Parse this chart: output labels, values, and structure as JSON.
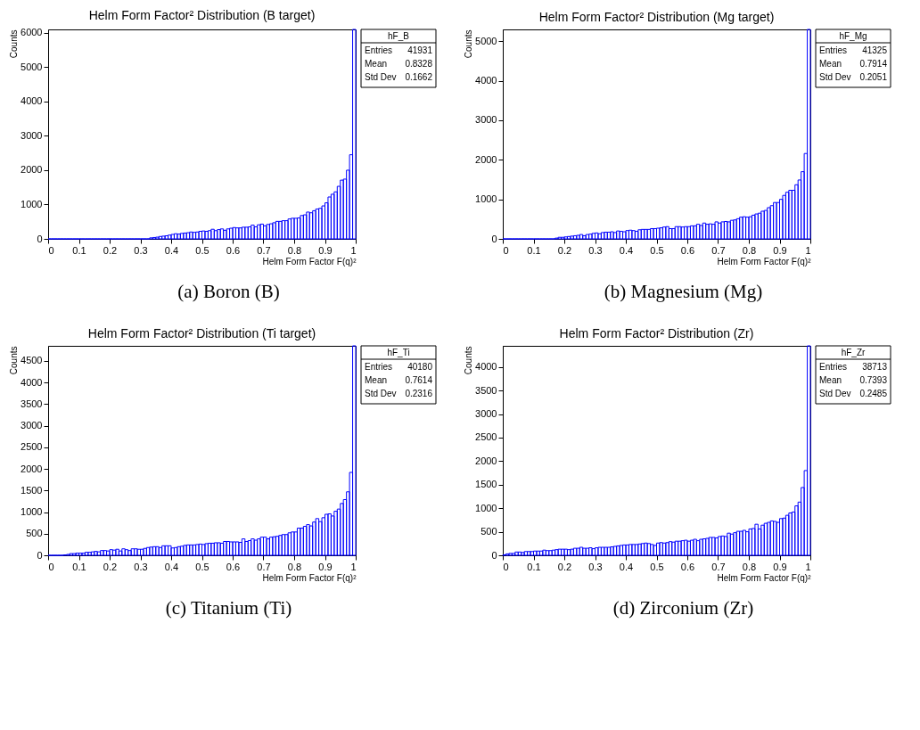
{
  "chart_data": [
    {
      "type": "histogram",
      "title": "Helm Form Factor² Distribution (B target)",
      "xlabel": "Helm Form Factor F(q)²",
      "ylabel": "Counts",
      "color": "#0000ff",
      "bins": [
        0,
        0.01,
        0.02,
        0.03,
        0.04,
        0.05,
        0.06,
        0.07,
        0.08,
        0.09,
        0.1,
        0.11,
        0.12,
        0.13,
        0.14,
        0.15,
        0.16,
        0.17,
        0.18,
        0.19,
        0.2,
        0.21,
        0.22,
        0.23,
        0.24,
        0.25,
        0.26,
        0.27,
        0.28,
        0.29,
        0.3,
        0.31,
        0.32,
        0.33,
        0.34,
        0.35,
        0.36,
        0.37,
        0.38,
        0.39,
        0.4,
        0.41,
        0.42,
        0.43,
        0.44,
        0.45,
        0.46,
        0.47,
        0.48,
        0.49,
        0.5,
        0.51,
        0.52,
        0.53,
        0.54,
        0.55,
        0.56,
        0.57,
        0.58,
        0.59,
        0.6,
        0.61,
        0.62,
        0.63,
        0.64,
        0.65,
        0.66,
        0.67,
        0.68,
        0.69,
        0.7,
        0.71,
        0.72,
        0.73,
        0.74,
        0.75,
        0.76,
        0.77,
        0.78,
        0.79,
        0.8,
        0.81,
        0.82,
        0.83,
        0.84,
        0.85,
        0.86,
        0.87,
        0.88,
        0.89,
        0.9,
        0.91,
        0.92,
        0.93,
        0.94,
        0.95,
        0.96,
        0.97,
        0.98,
        0.99,
        1
      ],
      "values": [
        0,
        0,
        0,
        0,
        0,
        0,
        0,
        0,
        0,
        0,
        0,
        0,
        0,
        0,
        0,
        0,
        0,
        0,
        0,
        0,
        0,
        0,
        0,
        0,
        0,
        0,
        0,
        0,
        0,
        0,
        0,
        0,
        0,
        30,
        40,
        50,
        70,
        80,
        90,
        110,
        130,
        150,
        140,
        160,
        170,
        180,
        200,
        190,
        200,
        220,
        230,
        220,
        240,
        280,
        240,
        270,
        290,
        250,
        290,
        310,
        330,
        320,
        320,
        340,
        340,
        350,
        400,
        350,
        410,
        430,
        380,
        420,
        440,
        470,
        510,
        510,
        530,
        530,
        580,
        600,
        600,
        610,
        680,
        700,
        780,
        760,
        820,
        870,
        890,
        960,
        1050,
        1220,
        1300,
        1370,
        1530,
        1710,
        1740,
        2000,
        2450,
        6100
      ],
      "xlim": [
        0,
        1
      ],
      "xticks": [
        0,
        0.1,
        0.2,
        0.3,
        0.4,
        0.5,
        0.6,
        0.7,
        0.8,
        0.9,
        1
      ],
      "ylim": [
        0,
        6100
      ],
      "yticks": [
        0,
        1000,
        2000,
        3000,
        4000,
        5000,
        6000
      ],
      "annotations": [
        "hF_B",
        "Entries",
        "41931",
        "Mean",
        "0.8328",
        "Std Dev",
        "0.1662",
        "(a) Boron (B)"
      ]
    },
    {
      "type": "histogram",
      "title": "Helm Form Factor² Distribution (Mg target)",
      "xlabel": "Helm Form Factor F(q)²",
      "ylabel": "Counts",
      "color": "#0000ff",
      "bins": [
        0,
        0.01,
        0.02,
        0.03,
        0.04,
        0.05,
        0.06,
        0.07,
        0.08,
        0.09,
        0.1,
        0.11,
        0.12,
        0.13,
        0.14,
        0.15,
        0.16,
        0.17,
        0.18,
        0.19,
        0.2,
        0.21,
        0.22,
        0.23,
        0.24,
        0.25,
        0.26,
        0.27,
        0.28,
        0.29,
        0.3,
        0.31,
        0.32,
        0.33,
        0.34,
        0.35,
        0.36,
        0.37,
        0.38,
        0.39,
        0.4,
        0.41,
        0.42,
        0.43,
        0.44,
        0.45,
        0.46,
        0.47,
        0.48,
        0.49,
        0.5,
        0.51,
        0.52,
        0.53,
        0.54,
        0.55,
        0.56,
        0.57,
        0.58,
        0.59,
        0.6,
        0.61,
        0.62,
        0.63,
        0.64,
        0.65,
        0.66,
        0.67,
        0.68,
        0.69,
        0.7,
        0.71,
        0.72,
        0.73,
        0.74,
        0.75,
        0.76,
        0.77,
        0.78,
        0.79,
        0.8,
        0.81,
        0.82,
        0.83,
        0.84,
        0.85,
        0.86,
        0.87,
        0.88,
        0.89,
        0.9,
        0.91,
        0.92,
        0.93,
        0.94,
        0.95,
        0.96,
        0.97,
        0.98,
        0.99,
        1
      ],
      "values": [
        0,
        0,
        0,
        0,
        0,
        0,
        0,
        0,
        0,
        0,
        0,
        0,
        0,
        0,
        0,
        0,
        0,
        20,
        40,
        40,
        50,
        60,
        70,
        80,
        90,
        110,
        80,
        110,
        120,
        140,
        150,
        130,
        160,
        170,
        170,
        180,
        160,
        200,
        190,
        180,
        210,
        220,
        210,
        190,
        230,
        240,
        240,
        240,
        260,
        260,
        270,
        280,
        300,
        310,
        260,
        260,
        310,
        310,
        300,
        310,
        310,
        330,
        330,
        370,
        340,
        400,
        370,
        380,
        370,
        430,
        400,
        430,
        440,
        430,
        470,
        480,
        510,
        550,
        560,
        550,
        560,
        600,
        630,
        650,
        700,
        720,
        790,
        840,
        920,
        920,
        1000,
        1100,
        1180,
        1230,
        1230,
        1370,
        1490,
        1700,
        2160,
        5300
      ],
      "xlim": [
        0,
        1
      ],
      "xticks": [
        0,
        0.1,
        0.2,
        0.3,
        0.4,
        0.5,
        0.6,
        0.7,
        0.8,
        0.9,
        1
      ],
      "ylim": [
        0,
        5300
      ],
      "yticks": [
        0,
        1000,
        2000,
        3000,
        4000,
        5000
      ],
      "annotations": [
        "hF_Mg",
        "Entries",
        "41325",
        "Mean",
        "0.7914",
        "Std Dev",
        "0.2051",
        "(b) Magnesium (Mg)"
      ]
    },
    {
      "type": "histogram",
      "title": "Helm Form Factor² Distribution (Ti target)",
      "xlabel": "Helm Form Factor F(q)²",
      "ylabel": "Counts",
      "color": "#0000ff",
      "bins": [
        0,
        0.01,
        0.02,
        0.03,
        0.04,
        0.05,
        0.06,
        0.07,
        0.08,
        0.09,
        0.1,
        0.11,
        0.12,
        0.13,
        0.14,
        0.15,
        0.16,
        0.17,
        0.18,
        0.19,
        0.2,
        0.21,
        0.22,
        0.23,
        0.24,
        0.25,
        0.26,
        0.27,
        0.28,
        0.29,
        0.3,
        0.31,
        0.32,
        0.33,
        0.34,
        0.35,
        0.36,
        0.37,
        0.38,
        0.39,
        0.4,
        0.41,
        0.42,
        0.43,
        0.44,
        0.45,
        0.46,
        0.47,
        0.48,
        0.49,
        0.5,
        0.51,
        0.52,
        0.53,
        0.54,
        0.55,
        0.56,
        0.57,
        0.58,
        0.59,
        0.6,
        0.61,
        0.62,
        0.63,
        0.64,
        0.65,
        0.66,
        0.67,
        0.68,
        0.69,
        0.7,
        0.71,
        0.72,
        0.73,
        0.74,
        0.75,
        0.76,
        0.77,
        0.78,
        0.79,
        0.8,
        0.81,
        0.82,
        0.83,
        0.84,
        0.85,
        0.86,
        0.87,
        0.88,
        0.89,
        0.9,
        0.91,
        0.92,
        0.93,
        0.94,
        0.95,
        0.96,
        0.97,
        0.98,
        0.99,
        1
      ],
      "values": [
        0,
        0,
        0,
        0,
        0,
        10,
        20,
        40,
        40,
        50,
        50,
        50,
        70,
        70,
        80,
        90,
        80,
        110,
        110,
        100,
        130,
        120,
        140,
        100,
        150,
        130,
        110,
        150,
        150,
        140,
        140,
        160,
        180,
        190,
        200,
        200,
        180,
        220,
        220,
        220,
        170,
        180,
        200,
        210,
        230,
        240,
        240,
        240,
        250,
        260,
        250,
        270,
        280,
        280,
        290,
        290,
        280,
        320,
        320,
        310,
        310,
        310,
        300,
        380,
        320,
        340,
        380,
        350,
        380,
        420,
        420,
        380,
        420,
        430,
        440,
        460,
        480,
        480,
        520,
        540,
        540,
        630,
        630,
        670,
        710,
        680,
        770,
        850,
        780,
        870,
        950,
        960,
        910,
        1020,
        1070,
        1200,
        1290,
        1470,
        1920,
        4850
      ],
      "xlim": [
        0,
        1
      ],
      "xticks": [
        0,
        0.1,
        0.2,
        0.3,
        0.4,
        0.5,
        0.6,
        0.7,
        0.8,
        0.9,
        1
      ],
      "ylim": [
        0,
        4850
      ],
      "yticks": [
        0,
        500,
        1000,
        1500,
        2000,
        2500,
        3000,
        3500,
        4000,
        4500
      ],
      "annotations": [
        "hF_Ti",
        "Entries",
        "40180",
        "Mean",
        "0.7614",
        "Std Dev",
        "0.2316",
        "(c) Titanium (Ti)"
      ]
    },
    {
      "type": "histogram",
      "title": "Helm Form Factor² Distribution (Zr)",
      "xlabel": "Helm Form Factor F(q)²",
      "ylabel": "Counts",
      "color": "#0000ff",
      "bins": [
        0,
        0.01,
        0.02,
        0.03,
        0.04,
        0.05,
        0.06,
        0.07,
        0.08,
        0.09,
        0.1,
        0.11,
        0.12,
        0.13,
        0.14,
        0.15,
        0.16,
        0.17,
        0.18,
        0.19,
        0.2,
        0.21,
        0.22,
        0.23,
        0.24,
        0.25,
        0.26,
        0.27,
        0.28,
        0.29,
        0.3,
        0.31,
        0.32,
        0.33,
        0.34,
        0.35,
        0.36,
        0.37,
        0.38,
        0.39,
        0.4,
        0.41,
        0.42,
        0.43,
        0.44,
        0.45,
        0.46,
        0.47,
        0.48,
        0.49,
        0.5,
        0.51,
        0.52,
        0.53,
        0.54,
        0.55,
        0.56,
        0.57,
        0.58,
        0.59,
        0.6,
        0.61,
        0.62,
        0.63,
        0.64,
        0.65,
        0.66,
        0.67,
        0.68,
        0.69,
        0.7,
        0.71,
        0.72,
        0.73,
        0.74,
        0.75,
        0.76,
        0.77,
        0.78,
        0.79,
        0.8,
        0.81,
        0.82,
        0.83,
        0.84,
        0.85,
        0.86,
        0.87,
        0.88,
        0.89,
        0.9,
        0.91,
        0.92,
        0.93,
        0.94,
        0.95,
        0.96,
        0.97,
        0.98,
        0.99,
        1
      ],
      "values": [
        10,
        30,
        40,
        40,
        70,
        70,
        60,
        80,
        80,
        80,
        90,
        90,
        90,
        110,
        100,
        100,
        110,
        120,
        130,
        130,
        130,
        120,
        130,
        150,
        150,
        170,
        150,
        150,
        160,
        140,
        160,
        170,
        170,
        170,
        170,
        180,
        190,
        200,
        210,
        220,
        220,
        230,
        230,
        230,
        240,
        250,
        260,
        250,
        230,
        210,
        260,
        270,
        260,
        270,
        290,
        280,
        300,
        300,
        310,
        320,
        300,
        320,
        340,
        310,
        340,
        350,
        360,
        380,
        380,
        370,
        400,
        410,
        400,
        470,
        450,
        480,
        510,
        510,
        530,
        500,
        560,
        570,
        660,
        560,
        640,
        680,
        700,
        730,
        720,
        700,
        780,
        790,
        850,
        900,
        920,
        1050,
        1130,
        1440,
        1800,
        4450
      ],
      "xlim": [
        0,
        1
      ],
      "xticks": [
        0,
        0.1,
        0.2,
        0.3,
        0.4,
        0.5,
        0.6,
        0.7,
        0.8,
        0.9,
        1
      ],
      "ylim": [
        0,
        4450
      ],
      "yticks": [
        0,
        500,
        1000,
        1500,
        2000,
        2500,
        3000,
        3500,
        4000
      ],
      "annotations": [
        "hF_Zr",
        "Entries",
        "38713",
        "Mean",
        "0.7393",
        "Std Dev",
        "0.2485",
        "(d) Zirconium (Zr)"
      ]
    }
  ]
}
